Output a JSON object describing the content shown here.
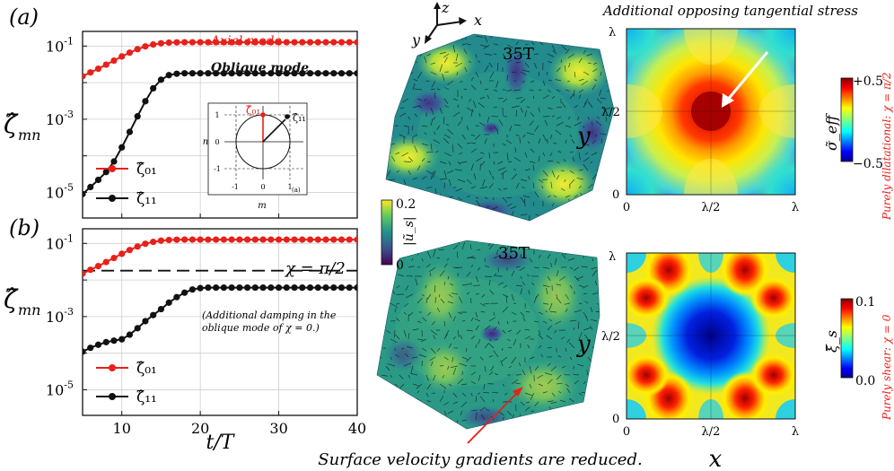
{
  "panel_a_label": "(a)",
  "panel_b_label": "(b)",
  "ylabel": "ζ̂",
  "ylabel_sub": "mn",
  "xlabel": "t/T",
  "axial_mode_label": "Axial mode",
  "oblique_mode_label": "Oblique mode",
  "legend": {
    "s01": "ζ̂₀₁",
    "s11": "ζ̂₁₁"
  },
  "chi_line_label": "χ = π/2",
  "note_line1": "(Additional damping in the",
  "note_line2": "oblique mode of χ = 0.)",
  "inset": {
    "label": "(a)",
    "m": "m",
    "n": "n",
    "z01": "ζ̂₀₁",
    "z11": "ζ̂₁₁",
    "ticks": [
      "-1",
      "0",
      "1"
    ]
  },
  "surface_time_top": "35T",
  "surface_time_bottom": "35T",
  "axes3d": {
    "z": "z",
    "x": "x",
    "y": "y"
  },
  "colorbar_u": {
    "label": "|ũ_s|",
    "max": "0.2",
    "min": "0"
  },
  "right_title": "Additional opposing tangential stress",
  "sigma_bar": {
    "label": "σ̃_eff",
    "max": "+0.5",
    "min": "−0.5"
  },
  "xi_bar": {
    "label": "ξ̃_s",
    "max": "0.1",
    "min": "0.0"
  },
  "side_top": "Purely dilatational: χ = π/2",
  "side_bottom": "Purely shear: χ = 0",
  "map_ticks": {
    "zero": "0",
    "half": "λ/2",
    "full": "λ"
  },
  "map_x": "x",
  "map_y": "y",
  "bottom_caption": "Surface velocity gradients are reduced.",
  "colors": {
    "red": "#e8201a",
    "black": "#111111"
  },
  "chart_data": [
    {
      "type": "line",
      "panel": "a",
      "xlabel": "t/T",
      "ylabel": "ζ̂_mn",
      "xlim": [
        5,
        40
      ],
      "ylim_log10": [
        -5.7,
        -0.6
      ],
      "xticks": [
        10,
        20,
        30,
        40
      ],
      "ytick_labels": [
        "10^-5",
        "10^-3",
        "10^-1"
      ],
      "x": [
        5,
        6,
        7,
        8,
        9,
        10,
        11,
        12,
        13,
        14,
        15,
        16,
        17,
        18,
        19,
        20,
        21,
        22,
        23,
        24,
        25,
        26,
        27,
        28,
        29,
        30,
        31,
        32,
        33,
        34,
        35,
        36,
        37,
        38,
        39,
        40
      ],
      "series": [
        {
          "name": "ζ̂01",
          "color": "#e8201a",
          "values": [
            0.015,
            0.019,
            0.024,
            0.031,
            0.04,
            0.052,
            0.066,
            0.082,
            0.098,
            0.11,
            0.119,
            0.124,
            0.126,
            0.127,
            0.127,
            0.127,
            0.127,
            0.127,
            0.127,
            0.127,
            0.127,
            0.127,
            0.127,
            0.127,
            0.127,
            0.127,
            0.127,
            0.127,
            0.127,
            0.127,
            0.127,
            0.127,
            0.127,
            0.127,
            0.127,
            0.127
          ]
        },
        {
          "name": "ζ̂11",
          "color": "#111111",
          "values": [
            9e-06,
            1.4e-05,
            2.2e-05,
            3.6e-05,
            7e-05,
            0.00017,
            0.00045,
            0.0012,
            0.0031,
            0.007,
            0.012,
            0.016,
            0.0175,
            0.018,
            0.018,
            0.018,
            0.018,
            0.018,
            0.018,
            0.018,
            0.018,
            0.018,
            0.018,
            0.018,
            0.018,
            0.018,
            0.018,
            0.018,
            0.018,
            0.018,
            0.018,
            0.018,
            0.018,
            0.018,
            0.018,
            0.018
          ]
        }
      ]
    },
    {
      "type": "line",
      "panel": "b",
      "xlabel": "t/T",
      "ylabel": "ζ̂_mn",
      "xlim": [
        5,
        40
      ],
      "ylim_log10": [
        -5.7,
        -0.6
      ],
      "xticks": [
        10,
        20,
        30,
        40
      ],
      "ytick_labels": [
        "10^-5",
        "10^-3",
        "10^-1"
      ],
      "reference_line": {
        "label": "χ = π/2",
        "value": 0.018
      },
      "x": [
        5,
        6,
        7,
        8,
        9,
        10,
        11,
        12,
        13,
        14,
        15,
        16,
        17,
        18,
        19,
        20,
        21,
        22,
        23,
        24,
        25,
        26,
        27,
        28,
        29,
        30,
        31,
        32,
        33,
        34,
        35,
        36,
        37,
        38,
        39,
        40
      ],
      "series": [
        {
          "name": "ζ̂01",
          "color": "#e8201a",
          "values": [
            0.015,
            0.019,
            0.024,
            0.031,
            0.04,
            0.052,
            0.066,
            0.082,
            0.098,
            0.11,
            0.119,
            0.124,
            0.126,
            0.127,
            0.127,
            0.127,
            0.127,
            0.127,
            0.127,
            0.127,
            0.127,
            0.127,
            0.127,
            0.127,
            0.127,
            0.127,
            0.127,
            0.127,
            0.127,
            0.127,
            0.127,
            0.127,
            0.127,
            0.127,
            0.127,
            0.127
          ]
        },
        {
          "name": "ζ̂11",
          "color": "#111111",
          "values": [
            0.00011,
            0.00014,
            0.00017,
            0.0002,
            0.00022,
            0.00024,
            0.00032,
            0.00048,
            0.00075,
            0.0011,
            0.0016,
            0.0024,
            0.0034,
            0.0045,
            0.0055,
            0.006,
            0.0062,
            0.0062,
            0.0062,
            0.0062,
            0.0062,
            0.0062,
            0.0062,
            0.0062,
            0.0062,
            0.0062,
            0.0062,
            0.0062,
            0.0062,
            0.0062,
            0.0062,
            0.0062,
            0.0062,
            0.0062,
            0.0062,
            0.0062
          ]
        }
      ]
    }
  ]
}
